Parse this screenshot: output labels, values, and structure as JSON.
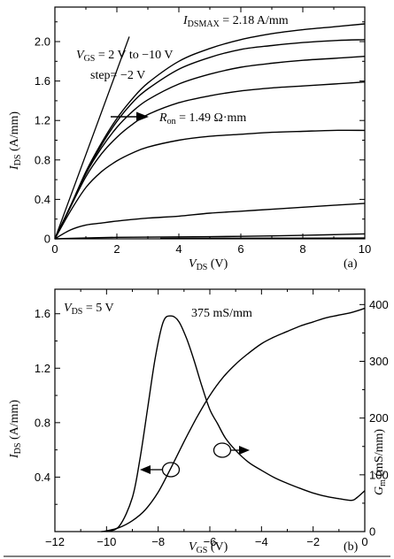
{
  "chart_data": [
    {
      "type": "line",
      "panel_label": "(a)",
      "xlabel": {
        "sym": "V",
        "sub": "DS",
        "unit": " (V)"
      },
      "ylabel": {
        "sym": "I",
        "sub": "DS",
        "unit": " (A/mm)"
      },
      "xlim": [
        0,
        10
      ],
      "ylim": [
        0,
        2.35
      ],
      "xticks": [
        "0",
        "2",
        "4",
        "6",
        "8",
        "10"
      ],
      "yticks": [
        "0",
        "0.4",
        "0.8",
        "1.2",
        "1.6",
        "2.0"
      ],
      "annotations": {
        "idsmax": {
          "sym": "I",
          "sub": "DSMAX",
          "text": " = 2.18 A/mm"
        },
        "vgs": {
          "sym": "V",
          "sub": "GS",
          "text": " = 2 V to −10 V"
        },
        "step": "step= −2 V",
        "ron": {
          "sym": "R",
          "sub": "on",
          "text": " = 1.49 Ω·mm"
        }
      },
      "ron_line": {
        "x": [
          0,
          2.4
        ],
        "y": [
          0,
          2.05
        ]
      },
      "series": [
        {
          "vgs": 2,
          "x": [
            0,
            0.5,
            1,
            1.5,
            2,
            2.5,
            3,
            4,
            5,
            6,
            7,
            8,
            9,
            10
          ],
          "y": [
            0,
            0.33,
            0.68,
            0.97,
            1.22,
            1.42,
            1.58,
            1.8,
            1.93,
            2.02,
            2.08,
            2.12,
            2.15,
            2.18
          ]
        },
        {
          "vgs": 0,
          "x": [
            0,
            0.5,
            1,
            1.5,
            2,
            2.5,
            3,
            4,
            5,
            6,
            7,
            8,
            9,
            10
          ],
          "y": [
            0,
            0.33,
            0.67,
            0.95,
            1.19,
            1.38,
            1.52,
            1.72,
            1.84,
            1.92,
            1.96,
            1.99,
            2.01,
            2.02
          ]
        },
        {
          "vgs": -2,
          "x": [
            0,
            0.5,
            1,
            1.5,
            2,
            2.5,
            3,
            4,
            5,
            6,
            7,
            8,
            9,
            10
          ],
          "y": [
            0,
            0.33,
            0.66,
            0.92,
            1.13,
            1.29,
            1.41,
            1.57,
            1.67,
            1.74,
            1.78,
            1.81,
            1.83,
            1.85
          ]
        },
        {
          "vgs": -4,
          "x": [
            0,
            0.5,
            1,
            1.5,
            2,
            2.5,
            3,
            4,
            5,
            6,
            7,
            8,
            9,
            10
          ],
          "y": [
            0,
            0.32,
            0.63,
            0.86,
            1.03,
            1.16,
            1.26,
            1.38,
            1.45,
            1.5,
            1.53,
            1.55,
            1.57,
            1.59
          ]
        },
        {
          "vgs": -6,
          "x": [
            0,
            0.5,
            1,
            1.5,
            2,
            2.5,
            3,
            4,
            5,
            6,
            7,
            8,
            9,
            10
          ],
          "y": [
            0,
            0.28,
            0.52,
            0.68,
            0.79,
            0.87,
            0.93,
            1.0,
            1.04,
            1.06,
            1.08,
            1.09,
            1.1,
            1.1
          ]
        },
        {
          "vgs": -8,
          "x": [
            0,
            0.5,
            1,
            1.5,
            2,
            3,
            4,
            5,
            6,
            7,
            8,
            9,
            10
          ],
          "y": [
            0,
            0.09,
            0.14,
            0.16,
            0.18,
            0.21,
            0.23,
            0.26,
            0.28,
            0.3,
            0.32,
            0.34,
            0.36
          ]
        },
        {
          "vgs": -10,
          "x": [
            0,
            2,
            4,
            6,
            8,
            10
          ],
          "y": [
            0,
            0.015,
            0.02,
            0.025,
            0.035,
            0.05
          ]
        },
        {
          "vgs": -10,
          "x": [
            3.4,
            10
          ],
          "y": [
            0.005,
            0.008
          ]
        }
      ]
    },
    {
      "type": "line",
      "panel_label": "(b)",
      "xlabel": {
        "sym": "V",
        "sub": "GS",
        "unit": " (V)"
      },
      "ylabel": {
        "sym": "I",
        "sub": "DS",
        "unit": " (A/mm)"
      },
      "y2label": {
        "sym": "G",
        "sub": "m",
        "unit": " (mS/mm)"
      },
      "xlim": [
        -12,
        0
      ],
      "ylim": [
        0,
        1.78
      ],
      "y2lim": [
        0,
        427
      ],
      "xticks": [
        "−12",
        "−10",
        "−8",
        "−6",
        "−4",
        "−2",
        "0"
      ],
      "yticks": [
        "0.4",
        "0.8",
        "1.2",
        "1.6"
      ],
      "y2ticks": [
        "0",
        "100",
        "200",
        "300",
        "400"
      ],
      "annotations": {
        "vds": {
          "sym": "V",
          "sub": "DS",
          "text": " = 5 V"
        },
        "gm_peak": "375 mS/mm"
      },
      "series": [
        {
          "name": "I_DS",
          "axis": "left",
          "x": [
            -10.2,
            -10,
            -9.5,
            -9,
            -8.5,
            -8,
            -7.5,
            -7,
            -6.5,
            -6,
            -5.5,
            -5,
            -4.5,
            -4,
            -3.5,
            -3,
            -2.5,
            -2,
            -1.5,
            -1,
            -0.5,
            0
          ],
          "y": [
            0,
            0.005,
            0.03,
            0.08,
            0.16,
            0.29,
            0.47,
            0.66,
            0.84,
            1.0,
            1.13,
            1.23,
            1.31,
            1.38,
            1.43,
            1.47,
            1.51,
            1.54,
            1.57,
            1.59,
            1.61,
            1.64
          ]
        },
        {
          "name": "G_m",
          "axis": "right",
          "x": [
            -10,
            -9.5,
            -9,
            -8.7,
            -8.4,
            -8.1,
            -7.8,
            -7.5,
            -7.2,
            -6.9,
            -6.6,
            -6.3,
            -6,
            -5.7,
            -5.4,
            -5,
            -4.5,
            -4,
            -3.5,
            -3,
            -2.5,
            -2,
            -1.5,
            -1,
            -0.5,
            -0.3,
            0
          ],
          "y": [
            0,
            10,
            60,
            130,
            220,
            310,
            370,
            380,
            370,
            340,
            300,
            255,
            215,
            190,
            165,
            143,
            122,
            108,
            95,
            85,
            76,
            68,
            62,
            58,
            55,
            60,
            72
          ]
        }
      ]
    }
  ]
}
